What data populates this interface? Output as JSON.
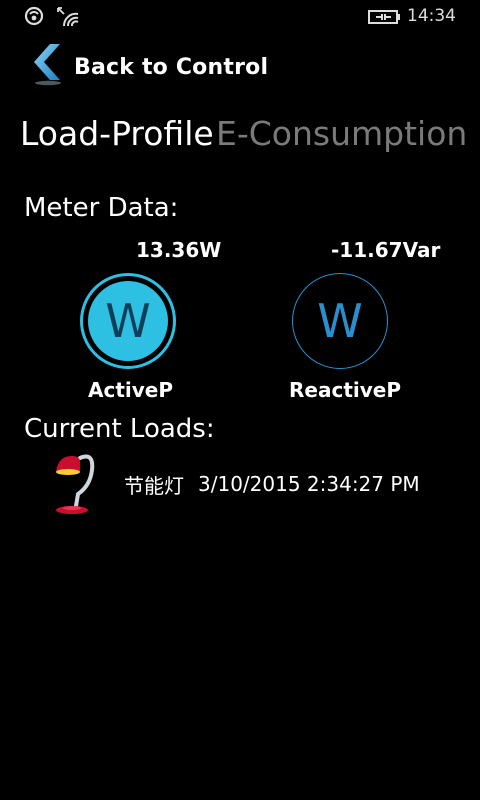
{
  "status_bar": {
    "time": "14:34",
    "icons": [
      "signal-icon",
      "wifi-icon",
      "battery-charging-icon"
    ]
  },
  "nav": {
    "back_label": "Back to Control"
  },
  "pivot": {
    "tabs": [
      {
        "label": "Load-Profile",
        "active": true
      },
      {
        "label": "E-Consumption",
        "active": false
      }
    ]
  },
  "meter": {
    "title": "Meter Data:",
    "items": [
      {
        "value": "13.36W",
        "glyph": "W",
        "label": "ActiveP",
        "active": true
      },
      {
        "value": "-11.67Var",
        "glyph": "W",
        "label": "ReactiveP",
        "active": false
      }
    ]
  },
  "loads": {
    "title": "Current Loads:",
    "items": [
      {
        "icon": "desk-lamp-icon",
        "name": "节能灯",
        "timestamp": "3/10/2015 2:34:27 PM"
      }
    ]
  },
  "colors": {
    "accent": "#2ec0e3",
    "accent_dark": "#2a8fcf",
    "inactive_text": "#7a7a7a",
    "lamp_red": "#c8102e"
  }
}
